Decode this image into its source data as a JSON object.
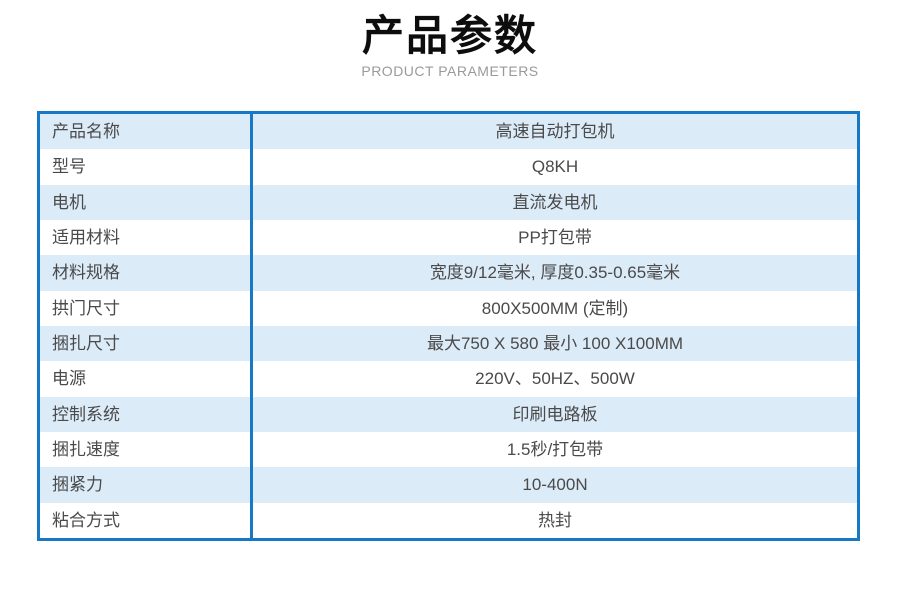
{
  "header": {
    "title": "产品参数",
    "subtitle": "PRODUCT PARAMETERS"
  },
  "table": {
    "rows": [
      {
        "label": "产品名称",
        "value": "高速自动打包机"
      },
      {
        "label": "型号",
        "value": "Q8KH"
      },
      {
        "label": "电机",
        "value": "直流发电机"
      },
      {
        "label": "适用材料",
        "value": "PP打包带"
      },
      {
        "label": "材料规格",
        "value": "宽度9/12毫米, 厚度0.35-0.65毫米"
      },
      {
        "label": "拱门尺寸",
        "value": "800X500MM (定制)"
      },
      {
        "label": "捆扎尺寸",
        "value": "最大750 X 580 最小 100 X100MM"
      },
      {
        "label": "电源",
        "value": "220V、50HZ、500W"
      },
      {
        "label": "控制系统",
        "value": "印刷电路板"
      },
      {
        "label": "捆扎速度",
        "value": "1.5秒/打包带"
      },
      {
        "label": "捆紧力",
        "value": "10-400N"
      },
      {
        "label": "粘合方式",
        "value": "热封"
      }
    ]
  },
  "colors": {
    "border_blue": "#1779c6",
    "row_alt_blue": "#dcebf8",
    "text_dark": "#4a4a4a",
    "subtitle_gray": "#9a9a9a"
  }
}
